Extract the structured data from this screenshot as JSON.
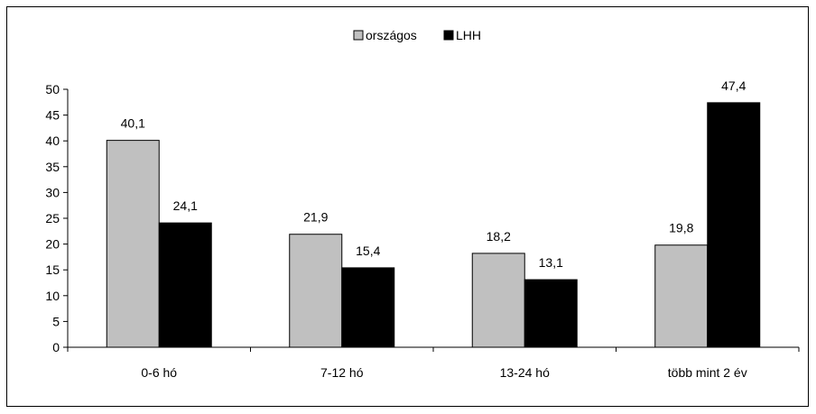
{
  "chart_data": {
    "type": "bar",
    "title": "",
    "xlabel": "",
    "ylabel": "",
    "categories": [
      "0-6 hó",
      "7-12 hó",
      "13-24 hó",
      "több mint 2 év"
    ],
    "series": [
      {
        "name": "országos",
        "values": [
          40.1,
          21.9,
          18.2,
          19.8
        ],
        "labels": [
          "40,1",
          "21,9",
          "18,2",
          "19,8"
        ],
        "color": "#c0c0c0"
      },
      {
        "name": "LHH",
        "values": [
          24.1,
          15.4,
          13.1,
          47.4
        ],
        "labels": [
          "24,1",
          "15,4",
          "13,1",
          "47,4"
        ],
        "color": "#000000"
      }
    ],
    "ylim": [
      0,
      50
    ],
    "yticks": [
      0,
      5,
      10,
      15,
      20,
      25,
      30,
      35,
      40,
      45,
      50
    ],
    "grid": false,
    "legend_position": "top-center"
  }
}
